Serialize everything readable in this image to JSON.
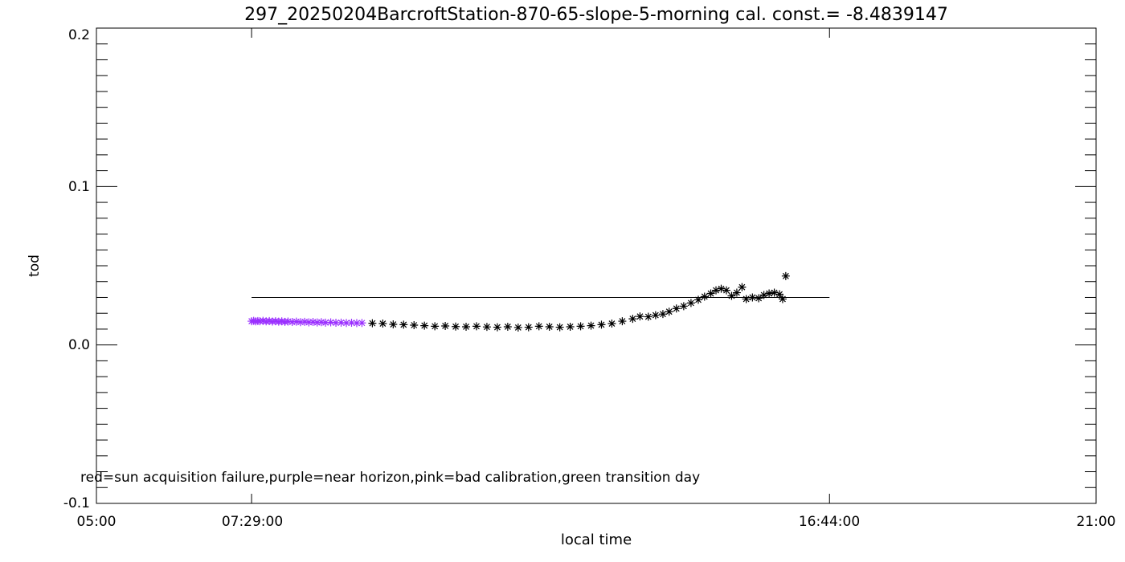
{
  "chart_data": {
    "type": "scatter",
    "title": "297_20250204BarcroftStation-870-65-slope-5-morning cal. const.= -8.4839147",
    "xlabel": "local time",
    "ylabel": "tod",
    "xlim": [
      "05:00",
      "21:00"
    ],
    "ylim": [
      -0.1,
      0.2
    ],
    "x_tick_labels": [
      "05:00",
      "07:29:00",
      "16:44:00",
      "21:00"
    ],
    "y_tick_labels": [
      "-0.1",
      "0.0",
      "0.1",
      "0.2"
    ],
    "y_tick_values": [
      -0.1,
      0.0,
      0.1,
      0.2
    ],
    "grid": false,
    "reference_line": {
      "x_start": "07:29",
      "x_end": "16:44",
      "y": 0.03
    },
    "legend_text": "red=sun acquisition failure,purple=near horizon,pink=bad calibration,green transition day",
    "marker": "asterisk",
    "series": [
      {
        "color": "#9b30ff",
        "points": [
          {
            "x": "07:29",
            "y": 0.015
          },
          {
            "x": "07:31",
            "y": 0.0152
          },
          {
            "x": "07:33",
            "y": 0.0149
          },
          {
            "x": "07:35",
            "y": 0.0151
          },
          {
            "x": "07:37",
            "y": 0.015
          },
          {
            "x": "07:40",
            "y": 0.0152
          },
          {
            "x": "07:43",
            "y": 0.0149
          },
          {
            "x": "07:46",
            "y": 0.0151
          },
          {
            "x": "07:49",
            "y": 0.0148
          },
          {
            "x": "07:52",
            "y": 0.015
          },
          {
            "x": "07:55",
            "y": 0.0147
          },
          {
            "x": "07:58",
            "y": 0.0149
          },
          {
            "x": "08:01",
            "y": 0.0146
          },
          {
            "x": "08:04",
            "y": 0.0148
          },
          {
            "x": "08:08",
            "y": 0.0145
          },
          {
            "x": "08:12",
            "y": 0.0147
          },
          {
            "x": "08:16",
            "y": 0.0144
          },
          {
            "x": "08:20",
            "y": 0.0146
          },
          {
            "x": "08:24",
            "y": 0.0143
          },
          {
            "x": "08:28",
            "y": 0.0145
          },
          {
            "x": "08:32",
            "y": 0.0142
          },
          {
            "x": "08:36",
            "y": 0.0144
          },
          {
            "x": "08:40",
            "y": 0.0141
          },
          {
            "x": "08:45",
            "y": 0.0143
          },
          {
            "x": "08:50",
            "y": 0.014
          },
          {
            "x": "08:55",
            "y": 0.0141
          },
          {
            "x": "09:00",
            "y": 0.0139
          },
          {
            "x": "09:05",
            "y": 0.014
          },
          {
            "x": "09:10",
            "y": 0.0138
          },
          {
            "x": "09:15",
            "y": 0.0139
          }
        ]
      },
      {
        "color": "#000000",
        "points": [
          {
            "x": "09:25",
            "y": 0.0137
          },
          {
            "x": "09:35",
            "y": 0.0135
          },
          {
            "x": "09:45",
            "y": 0.013
          },
          {
            "x": "09:55",
            "y": 0.0128
          },
          {
            "x": "10:05",
            "y": 0.0125
          },
          {
            "x": "10:15",
            "y": 0.0122
          },
          {
            "x": "10:25",
            "y": 0.0118
          },
          {
            "x": "10:35",
            "y": 0.012
          },
          {
            "x": "10:45",
            "y": 0.0116
          },
          {
            "x": "10:55",
            "y": 0.0115
          },
          {
            "x": "11:05",
            "y": 0.0118
          },
          {
            "x": "11:15",
            "y": 0.0114
          },
          {
            "x": "11:25",
            "y": 0.0112
          },
          {
            "x": "11:35",
            "y": 0.0115
          },
          {
            "x": "11:45",
            "y": 0.011
          },
          {
            "x": "11:55",
            "y": 0.0112
          },
          {
            "x": "12:05",
            "y": 0.0118
          },
          {
            "x": "12:15",
            "y": 0.0115
          },
          {
            "x": "12:25",
            "y": 0.0112
          },
          {
            "x": "12:35",
            "y": 0.0115
          },
          {
            "x": "12:45",
            "y": 0.0118
          },
          {
            "x": "12:55",
            "y": 0.0122
          },
          {
            "x": "13:05",
            "y": 0.0128
          },
          {
            "x": "13:15",
            "y": 0.0135
          },
          {
            "x": "13:25",
            "y": 0.015
          },
          {
            "x": "13:35",
            "y": 0.0165
          },
          {
            "x": "13:42",
            "y": 0.018
          },
          {
            "x": "13:50",
            "y": 0.0178
          },
          {
            "x": "13:57",
            "y": 0.0188
          },
          {
            "x": "14:04",
            "y": 0.0195
          },
          {
            "x": "14:10",
            "y": 0.021
          },
          {
            "x": "14:17",
            "y": 0.023
          },
          {
            "x": "14:24",
            "y": 0.0245
          },
          {
            "x": "14:31",
            "y": 0.0265
          },
          {
            "x": "14:38",
            "y": 0.0285
          },
          {
            "x": "14:44",
            "y": 0.0305
          },
          {
            "x": "14:50",
            "y": 0.0325
          },
          {
            "x": "14:55",
            "y": 0.0345
          },
          {
            "x": "15:00",
            "y": 0.0355
          },
          {
            "x": "15:05",
            "y": 0.0345
          },
          {
            "x": "15:10",
            "y": 0.031
          },
          {
            "x": "15:15",
            "y": 0.033
          },
          {
            "x": "15:20",
            "y": 0.0365
          },
          {
            "x": "15:24",
            "y": 0.029
          },
          {
            "x": "15:30",
            "y": 0.03
          },
          {
            "x": "15:36",
            "y": 0.0295
          },
          {
            "x": "15:41",
            "y": 0.0315
          },
          {
            "x": "15:46",
            "y": 0.0325
          },
          {
            "x": "15:51",
            "y": 0.033
          },
          {
            "x": "15:56",
            "y": 0.032
          },
          {
            "x": "15:59",
            "y": 0.029
          },
          {
            "x": "16:02",
            "y": 0.0435
          }
        ]
      }
    ]
  }
}
